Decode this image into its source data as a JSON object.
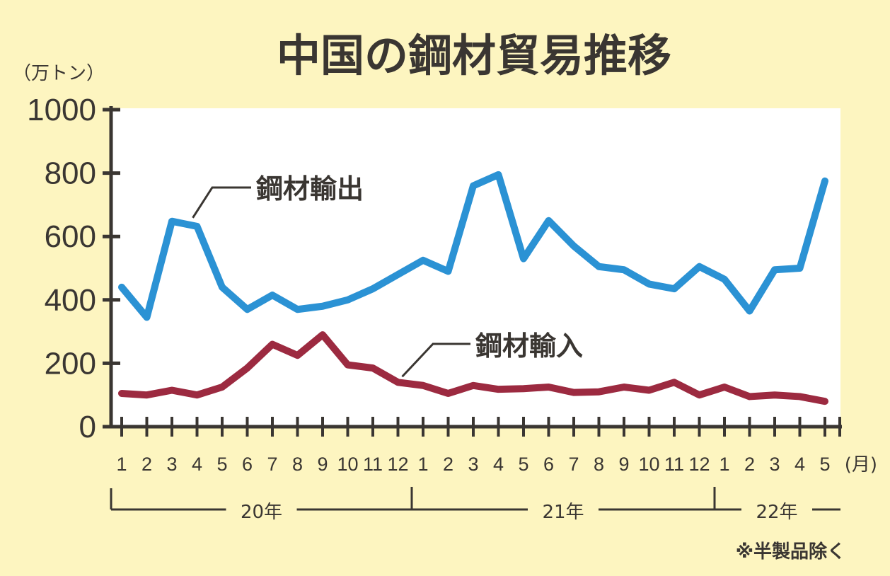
{
  "chart_data": {
    "type": "line",
    "title": "中国の鋼材貿易推移",
    "ylabel": "（万トン）",
    "xlabel_unit": "(月)",
    "ylim": [
      0,
      1000
    ],
    "yticks": [
      0,
      200,
      400,
      600,
      800,
      1000
    ],
    "x": [
      "1",
      "2",
      "3",
      "4",
      "5",
      "6",
      "7",
      "8",
      "9",
      "10",
      "11",
      "12",
      "1",
      "2",
      "3",
      "4",
      "5",
      "6",
      "7",
      "8",
      "9",
      "10",
      "11",
      "12",
      "1",
      "2",
      "3",
      "4",
      "5"
    ],
    "years": [
      {
        "label": "20年",
        "start": 0,
        "end": 11
      },
      {
        "label": "21年",
        "start": 12,
        "end": 23
      },
      {
        "label": "22年",
        "start": 24,
        "end": 28
      }
    ],
    "series": [
      {
        "name": "鋼材輸出",
        "color": "#2b92d4",
        "values": [
          440,
          345,
          648,
          632,
          440,
          370,
          415,
          370,
          380,
          400,
          435,
          480,
          525,
          490,
          760,
          795,
          530,
          650,
          570,
          505,
          495,
          450,
          435,
          505,
          465,
          365,
          495,
          500,
          775
        ]
      },
      {
        "name": "鋼材輸入",
        "color": "#9c2a40",
        "values": [
          105,
          100,
          115,
          100,
          125,
          185,
          260,
          225,
          290,
          195,
          185,
          140,
          130,
          105,
          130,
          118,
          120,
          125,
          108,
          110,
          125,
          115,
          140,
          100,
          125,
          95,
          100,
          95,
          80
        ]
      }
    ],
    "note": "※半製品除く"
  }
}
